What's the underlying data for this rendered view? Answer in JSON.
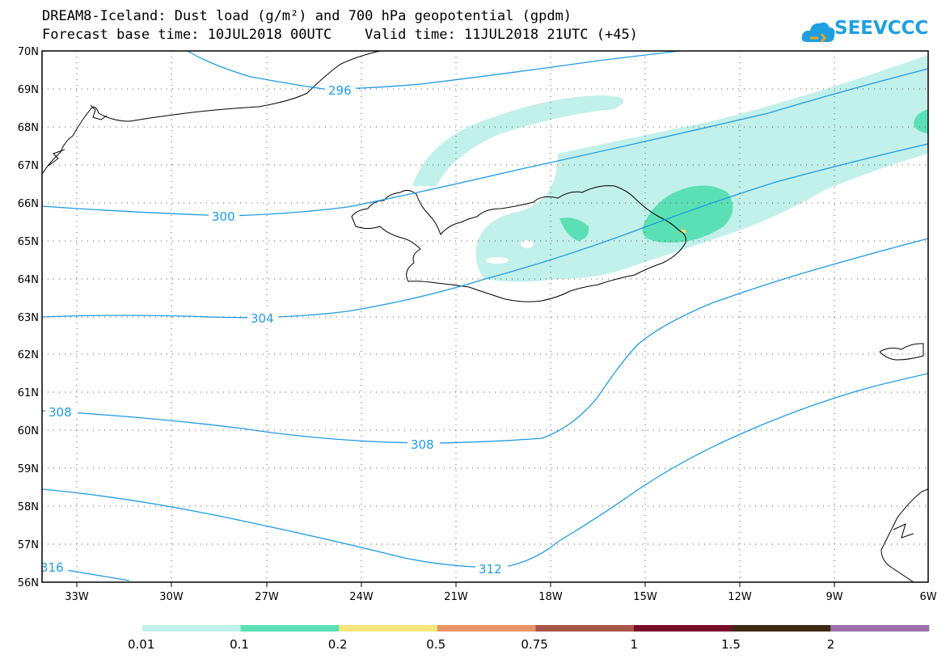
{
  "title": {
    "line1": "DREAM8-Iceland: Dust load (g/m²) and 700 hPa geopotential (gpdm)",
    "line2": "Forecast base time: 10JUL2018 00UTC    Valid time: 11JUL2018 21UTC (+45)"
  },
  "logo": {
    "text": "SEEVCCC",
    "icon": "cloud-icon",
    "color": "#1ea0e0"
  },
  "map": {
    "lat_labels": [
      "70N",
      "69N",
      "68N",
      "67N",
      "66N",
      "65N",
      "64N",
      "63N",
      "62N",
      "61N",
      "60N",
      "59N",
      "58N",
      "57N",
      "56N"
    ],
    "lon_labels": [
      "33W",
      "30W",
      "27W",
      "24W",
      "21W",
      "18W",
      "15W",
      "12W",
      "9W",
      "6W"
    ],
    "contour_labels": [
      "296",
      "300",
      "304",
      "308",
      "308",
      "312",
      "316"
    ],
    "contour_color": "#1e9be6",
    "coastline_color": "#000000"
  },
  "legend": {
    "colors": [
      "#c2f0ea",
      "#5ae0b4",
      "#f7e67a",
      "#e8946a",
      "#a9564a",
      "#7a0d2c",
      "#3d2a15",
      "#9a70a8"
    ],
    "labels": [
      "0.01",
      "0.1",
      "0.2",
      "0.5",
      "0.75",
      "1",
      "1.5",
      "2"
    ]
  }
}
